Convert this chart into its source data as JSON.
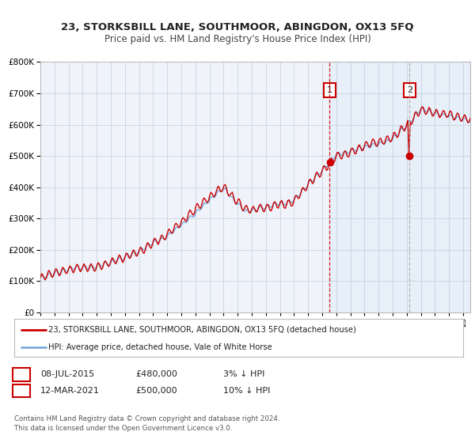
{
  "title": "23, STORKSBILL LANE, SOUTHMOOR, ABINGDON, OX13 5FQ",
  "subtitle": "Price paid vs. HM Land Registry's House Price Index (HPI)",
  "legend_line1": "23, STORKSBILL LANE, SOUTHMOOR, ABINGDON, OX13 5FQ (detached house)",
  "legend_line2": "HPI: Average price, detached house, Vale of White Horse",
  "annotation1_label": "1",
  "annotation1_date": "08-JUL-2015",
  "annotation1_price": "£480,000",
  "annotation1_hpi": "3% ↓ HPI",
  "annotation2_label": "2",
  "annotation2_date": "12-MAR-2021",
  "annotation2_price": "£500,000",
  "annotation2_hpi": "10% ↓ HPI",
  "footer1": "Contains HM Land Registry data © Crown copyright and database right 2024.",
  "footer2": "This data is licensed under the Open Government Licence v3.0.",
  "red_color": "#cc0000",
  "blue_color": "#7aabdb",
  "background_color": "#ffffff",
  "plot_bg_color": "#f0f4fa",
  "grid_color": "#c8d4e0",
  "sale1_year": 2015.52,
  "sale1_value": 480000,
  "sale2_year": 2021.19,
  "sale2_value": 500000,
  "xmin": 1995,
  "xmax": 2025.5,
  "ymin": 0,
  "ymax": 800000
}
